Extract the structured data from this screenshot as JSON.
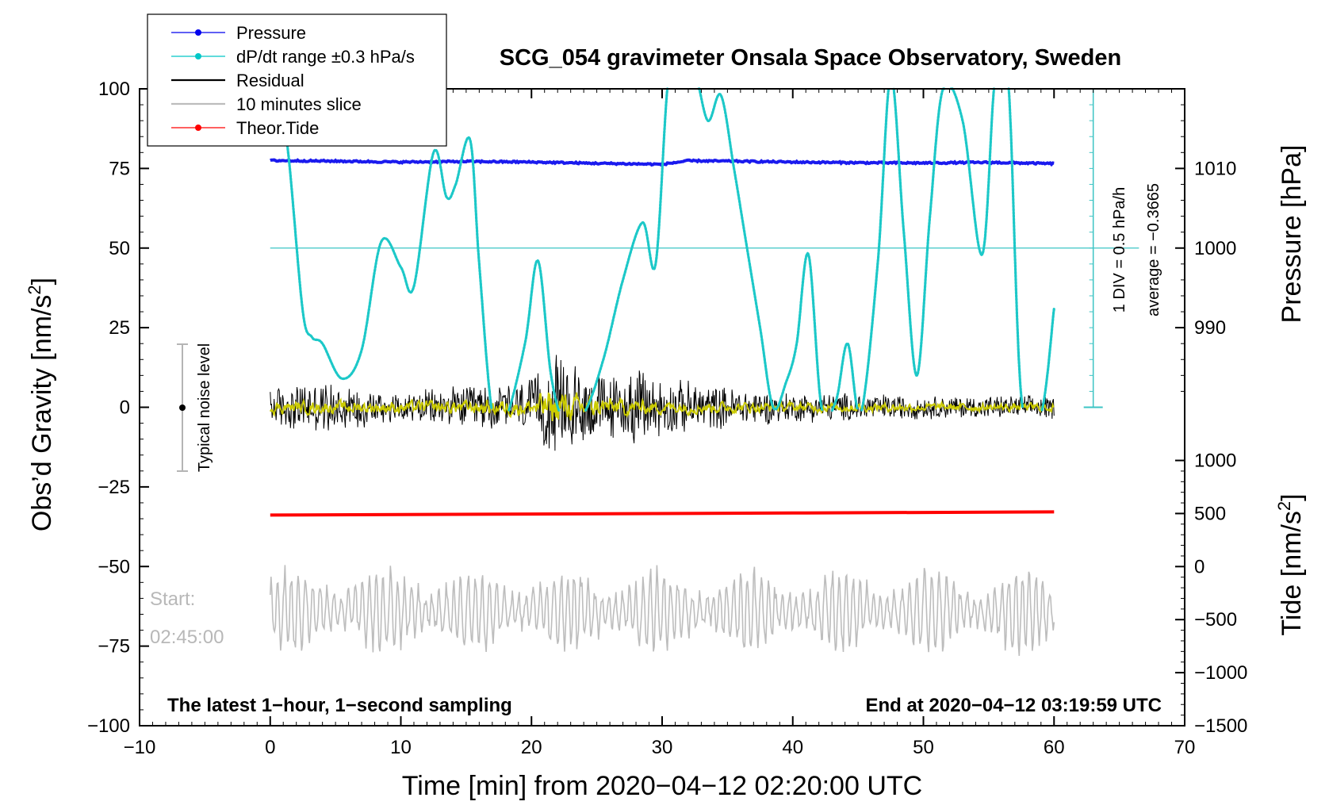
{
  "chart_data": {
    "type": "line",
    "title": "SCG_054 gravimeter Onsala Space Observatory, Sweden",
    "xlabel": "Time [min] from 2020−04−12 02:20:00 UTC",
    "ylabel_base": "Obs’d Gravity [nm/s",
    "ylabel_sup": "2",
    "ylabel_close": "]",
    "xlim": [
      -10,
      70
    ],
    "ylim": [
      -100,
      100
    ],
    "x_ticks": [
      -10,
      0,
      10,
      20,
      30,
      40,
      50,
      60,
      70
    ],
    "x_tick_labels": [
      "−10",
      "0",
      "10",
      "20",
      "30",
      "40",
      "50",
      "60",
      "70"
    ],
    "y_ticks": [
      -100,
      -75,
      -50,
      -25,
      0,
      25,
      50,
      75,
      100
    ],
    "y_tick_labels": [
      "−100",
      "−75",
      "−50",
      "−25",
      "0",
      "25",
      "50",
      "75",
      "100"
    ],
    "pressure_axis": {
      "label": "Pressure [hPa]",
      "ticks": [
        990,
        1000,
        1010
      ],
      "tick_labels": [
        "990",
        "1000",
        "1010"
      ],
      "map": {
        "hpa": [
          1000,
          1010
        ],
        "gravity": [
          50,
          75
        ]
      }
    },
    "tide_axis": {
      "label_base": "Tide [nm/s",
      "label_sup": "2",
      "label_close": "]",
      "ticks": [
        -1500,
        -1000,
        -500,
        0,
        500,
        1000
      ],
      "tick_labels": [
        "−1500",
        "−1000",
        "−500",
        "0",
        "500",
        "1000"
      ],
      "map": {
        "tide": [
          -1500,
          1000
        ],
        "gravity": [
          -100,
          -16.7
        ]
      }
    },
    "legend": [
      {
        "label": "Pressure",
        "color": "#0000ee",
        "marker": true
      },
      {
        "label": "dP/dt range ±0.3 hPa/s",
        "color": "#00c8c8",
        "marker": true
      },
      {
        "label": "Residual",
        "color": "#000000",
        "marker": false
      },
      {
        "label": "10 minutes slice",
        "color": "#bdbdbd",
        "marker": false
      },
      {
        "label": "Theor.Tide",
        "color": "#ff0000",
        "marker": true
      }
    ],
    "series": [
      {
        "name": "Pressure",
        "color": "#1a1aee",
        "unit": "gravity",
        "x": [
          0,
          5,
          10,
          15,
          20,
          25,
          30,
          32,
          35,
          40,
          45,
          50,
          55,
          60
        ],
        "y": [
          77.5,
          77.3,
          77.0,
          77.2,
          77.0,
          76.6,
          76.3,
          77.4,
          77.3,
          77.0,
          76.8,
          76.7,
          76.9,
          76.5
        ]
      },
      {
        "name": "dP/dt",
        "color": "#1cc8c8",
        "unit": "gravity",
        "dotted": true,
        "x": [
          0.7,
          1.5,
          2.5,
          3.2,
          4,
          5.5,
          7,
          8.5,
          10,
          11,
          12.5,
          13.5,
          14.2,
          15.3,
          16,
          17,
          18,
          19.5,
          20.5,
          21.5,
          22.5,
          24,
          25.5,
          27,
          28.5,
          29.5,
          30.5,
          31.5,
          32.5,
          33.5,
          34.5,
          35.5,
          36.5,
          37.5,
          38.5,
          39.5,
          40.3,
          41.2,
          42.2,
          43.3,
          44.2,
          45.2,
          46.5,
          47.5,
          48.5,
          49.5,
          50.5,
          51.5,
          53,
          54.5,
          55.5,
          56.5,
          57.5,
          59,
          60
        ],
        "y": [
          104,
          75,
          30,
          22,
          20,
          9,
          18,
          52,
          44,
          38,
          80,
          66,
          70,
          84,
          45,
          -2,
          -4,
          20,
          46,
          10,
          -4,
          -2,
          15,
          40,
          58,
          45,
          104,
          104,
          105,
          90,
          98,
          75,
          50,
          25,
          0,
          8,
          20,
          48,
          0,
          2,
          20,
          -2,
          45,
          104,
          55,
          10,
          60,
          100,
          90,
          48,
          104,
          102,
          3,
          -2,
          31
        ]
      },
      {
        "name": "Residual",
        "color": "#000000",
        "unit": "gravity",
        "synthetic_noise": true,
        "envelope_x": [
          0,
          3,
          6,
          10,
          14,
          16,
          18,
          20,
          21,
          22,
          23,
          25,
          27,
          28,
          29,
          30,
          32,
          35,
          40,
          45,
          50,
          55,
          60
        ],
        "envelope_amp": [
          7,
          9,
          8,
          5,
          7,
          8,
          8,
          10,
          14,
          18,
          16,
          12,
          11,
          13,
          14,
          10,
          9,
          7,
          5,
          5,
          4,
          4,
          4
        ]
      },
      {
        "name": "Residual (smoothed)",
        "color": "#cccc00",
        "unit": "gravity",
        "synthetic_noise": true,
        "envelope_x": [
          0,
          10,
          20,
          21,
          22,
          23,
          30,
          40,
          50,
          60
        ],
        "envelope_amp": [
          1.5,
          1.5,
          2,
          4,
          5,
          3,
          1.5,
          1.2,
          1,
          1
        ]
      },
      {
        "name": "Theor.Tide",
        "color": "#ff0000",
        "unit": "tide",
        "x": [
          0,
          20,
          40,
          60
        ],
        "y": [
          485,
          495,
          505,
          515
        ]
      },
      {
        "name": "10 minutes slice",
        "color": "#bdbdbd",
        "unit": "gravity",
        "synthetic_noise": true,
        "center": -64,
        "amplitude": 12
      }
    ]
  },
  "annotations": {
    "noise_label": "Typical noise level",
    "div_label": "1 DIV = 0.5 hPa/h",
    "avg_label": "average = −0.3665",
    "start_label": "Start:",
    "start_time": "02:45:00",
    "bottom_left": "The latest 1−hour, 1−second sampling",
    "bottom_right": "End at 2020−04−12 03:19:59 UTC"
  }
}
